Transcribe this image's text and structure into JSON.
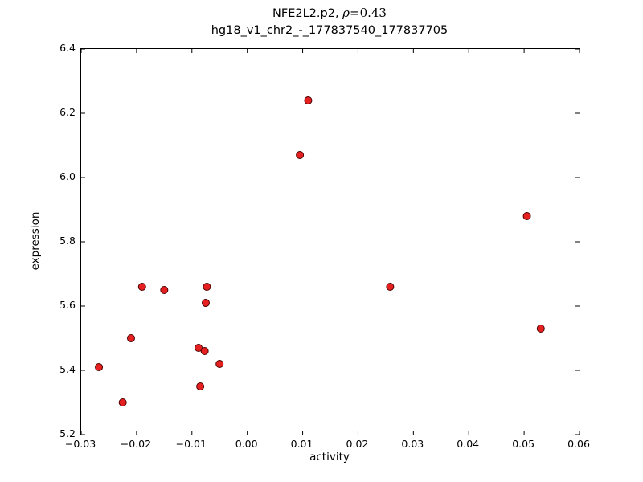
{
  "chart_data": {
    "type": "scatter",
    "title": "NFE2L2.p2, ρ=0.43",
    "title_parts": {
      "prefix": "NFE2L2.p2, ",
      "rho": "ρ",
      "rest": "=0.43"
    },
    "subtitle": "hg18_v1_chr2_-_177837540_177837705",
    "xlabel": "activity",
    "ylabel": "expression",
    "xlim": [
      -0.03,
      0.06
    ],
    "ylim": [
      5.2,
      6.4
    ],
    "xticks": [
      -0.03,
      -0.02,
      -0.01,
      0.0,
      0.01,
      0.02,
      0.03,
      0.04,
      0.05,
      0.06
    ],
    "xtick_labels": [
      "−0.03",
      "−0.02",
      "−0.01",
      "0.00",
      "0.01",
      "0.02",
      "0.03",
      "0.04",
      "0.05",
      "0.06"
    ],
    "yticks": [
      5.2,
      5.4,
      5.6,
      5.8,
      6.0,
      6.2,
      6.4
    ],
    "ytick_labels": [
      "5.2",
      "5.4",
      "5.6",
      "5.8",
      "6.0",
      "6.2",
      "6.4"
    ],
    "grid": false,
    "legend": "none",
    "marker": {
      "shape": "circle",
      "fill": "#e62020",
      "edge": "#4d0000",
      "radius": 4.5
    },
    "tick_length": 5,
    "points": [
      {
        "x": -0.0268,
        "y": 5.41
      },
      {
        "x": -0.0225,
        "y": 5.3
      },
      {
        "x": -0.021,
        "y": 5.5
      },
      {
        "x": -0.019,
        "y": 5.66
      },
      {
        "x": -0.015,
        "y": 5.65
      },
      {
        "x": -0.0088,
        "y": 5.47
      },
      {
        "x": -0.0085,
        "y": 5.35
      },
      {
        "x": -0.0077,
        "y": 5.46
      },
      {
        "x": -0.0075,
        "y": 5.61
      },
      {
        "x": -0.0073,
        "y": 5.66
      },
      {
        "x": -0.005,
        "y": 5.42
      },
      {
        "x": 0.0095,
        "y": 6.07
      },
      {
        "x": 0.011,
        "y": 6.24
      },
      {
        "x": 0.0258,
        "y": 5.66
      },
      {
        "x": 0.0505,
        "y": 5.88
      },
      {
        "x": 0.053,
        "y": 5.53
      }
    ]
  }
}
